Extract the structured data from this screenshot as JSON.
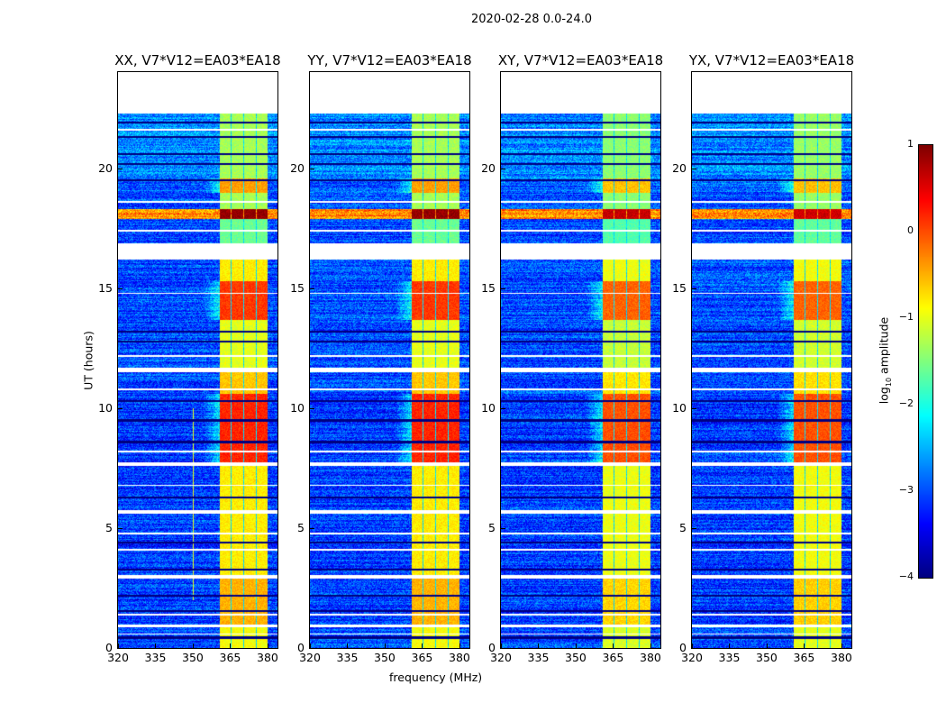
{
  "chart_data": {
    "type": "heatmap",
    "title": "2020-02-28 0.0-24.0",
    "xlabel": "frequency (MHz)",
    "ylabel": "UT (hours)",
    "xlim": [
      320,
      384
    ],
    "ylim": [
      0,
      24
    ],
    "xticks": [
      "320",
      "335",
      "350",
      "365",
      "380"
    ],
    "xtick_values": [
      320,
      335,
      350,
      365,
      380
    ],
    "yticks": [
      "0",
      "5",
      "10",
      "15",
      "20"
    ],
    "ytick_values": [
      0,
      5,
      10,
      15,
      20
    ],
    "colorbar": {
      "label": "log10 amplitude",
      "label_main": "log",
      "label_sub": "10",
      "label_rest": " amplitude",
      "range": [
        -4,
        1
      ],
      "ticks": [
        "1",
        "0",
        "−1",
        "−2",
        "−3",
        "−4"
      ],
      "tick_values": [
        1,
        0,
        -1,
        -2,
        -3,
        -4
      ],
      "colormap": "jet"
    },
    "panels": [
      {
        "title": "XX, V7*V12=EA03*EA18",
        "scale": 1.0
      },
      {
        "title": "YY, V7*V12=EA03*EA18",
        "scale": 1.0
      },
      {
        "title": "XY, V7*V12=EA03*EA18",
        "scale": 0.95
      },
      {
        "title": "YX, V7*V12=EA03*EA18",
        "scale": 0.9
      }
    ],
    "rfi_channel_blocks_mhz": [
      [
        360.5,
        365
      ],
      [
        365.5,
        370
      ],
      [
        370.5,
        375
      ],
      [
        375.5,
        380
      ]
    ],
    "time_segments": [
      {
        "t": [
          0,
          0.9
        ],
        "rfi": -0.9,
        "bg": -3.0
      },
      {
        "t": [
          0.9,
          1.0
        ],
        "flag": true
      },
      {
        "t": [
          1.0,
          2.9
        ],
        "rfi": -0.5,
        "bg": -3.1
      },
      {
        "t": [
          2.9,
          3.05
        ],
        "flag": true
      },
      {
        "t": [
          3.05,
          5.6
        ],
        "rfi": -0.8,
        "bg": -3.1
      },
      {
        "t": [
          5.6,
          5.75
        ],
        "flag": true
      },
      {
        "t": [
          5.75,
          7.6
        ],
        "rfi": -0.8,
        "bg": -3.1
      },
      {
        "t": [
          7.6,
          7.75
        ],
        "flag": true
      },
      {
        "t": [
          7.75,
          10.6
        ],
        "rfi": 0.2,
        "bg": -3.1
      },
      {
        "t": [
          10.6,
          11.5
        ],
        "rfi": -0.6,
        "bg": -3.0
      },
      {
        "t": [
          11.5,
          11.7
        ],
        "flag": true
      },
      {
        "t": [
          11.7,
          13.7
        ],
        "rfi": -1.0,
        "bg": -3.0
      },
      {
        "t": [
          13.7,
          15.3
        ],
        "rfi": 0.1,
        "bg": -3.0
      },
      {
        "t": [
          15.3,
          16.2
        ],
        "rfi": -0.8,
        "bg": -3.0
      },
      {
        "t": [
          16.2,
          16.9
        ],
        "flag": true
      },
      {
        "t": [
          16.9,
          17.9
        ],
        "rfi": -1.6,
        "bg": -3.0
      },
      {
        "t": [
          17.9,
          18.3
        ],
        "rfi": 0.9,
        "bg": -0.3
      },
      {
        "t": [
          18.3,
          19.0
        ],
        "rfi": -1.3,
        "bg": -3.0
      },
      {
        "t": [
          19.0,
          19.6
        ],
        "rfi": -0.4,
        "bg": -2.9
      },
      {
        "t": [
          19.6,
          22.3
        ],
        "rfi": -1.3,
        "bg": -2.7
      },
      {
        "t": [
          22.3,
          24
        ],
        "flag": true
      }
    ],
    "dark_rows_hours": [
      0.45,
      1.55,
      2.2,
      3.3,
      4.4,
      6.3,
      8.6,
      9.5,
      10.3,
      12.8,
      13.2,
      19.5,
      20.2,
      20.6,
      21.3,
      21.9
    ],
    "flag_rows_hours": [
      0.6,
      1.4,
      4.1,
      4.8,
      6.8,
      8.2,
      10.8,
      12.2,
      14.8,
      17.4,
      18.6,
      21.6
    ]
  }
}
